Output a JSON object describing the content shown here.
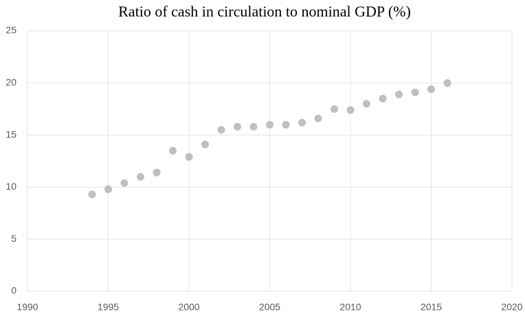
{
  "chart_data": {
    "type": "scatter",
    "title": "Ratio of cash in circulation to nominal GDP (%)",
    "x": [
      1994,
      1995,
      1996,
      1997,
      1998,
      1999,
      2000,
      2001,
      2002,
      2003,
      2004,
      2005,
      2006,
      2007,
      2008,
      2009,
      2010,
      2011,
      2012,
      2013,
      2014,
      2015,
      2016
    ],
    "values": [
      9.3,
      9.8,
      10.4,
      11.0,
      11.4,
      13.5,
      12.9,
      14.1,
      15.5,
      15.8,
      15.8,
      16.0,
      16.0,
      16.2,
      16.6,
      17.5,
      17.4,
      18.0,
      18.5,
      18.9,
      19.1,
      19.4,
      20.0
    ],
    "color": "#bfbfbf",
    "xlim": [
      1990,
      2020
    ],
    "xticks": [
      1990,
      1995,
      2000,
      2005,
      2010,
      2015,
      2020
    ],
    "ylim": [
      0,
      25
    ],
    "yticks": [
      0,
      5,
      10,
      15,
      20,
      25
    ],
    "grid": true
  }
}
